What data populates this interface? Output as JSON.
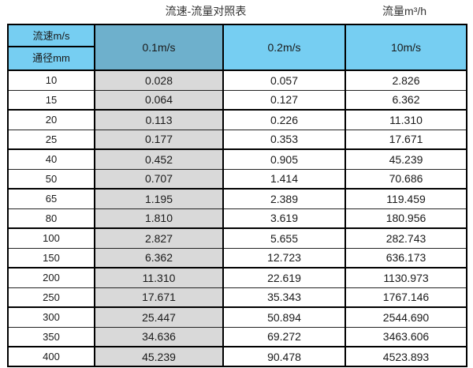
{
  "page": {
    "title": "流速-流量对照表",
    "unit_label": "流量m³/h"
  },
  "table_header": {
    "corner_top": "流速m/s",
    "corner_bottom": "通径mm",
    "velocity_columns": [
      "0.1m/s",
      "0.2m/s",
      "10m/s"
    ]
  },
  "chart_data": {
    "type": "table",
    "title": "流速-流量对照表",
    "right_label": "流量m³/h",
    "columns": [
      "通径mm",
      "0.1m/s",
      "0.2m/s",
      "10m/s"
    ],
    "rows": [
      [
        "10",
        "0.028",
        "0.057",
        "2.826"
      ],
      [
        "15",
        "0.064",
        "0.127",
        "6.362"
      ],
      [
        "20",
        "0.113",
        "0.226",
        "11.310"
      ],
      [
        "25",
        "0.177",
        "0.353",
        "17.671"
      ],
      [
        "40",
        "0.452",
        "0.905",
        "45.239"
      ],
      [
        "50",
        "0.707",
        "1.414",
        "70.686"
      ],
      [
        "65",
        "1.195",
        "2.389",
        "119.459"
      ],
      [
        "80",
        "1.810",
        "3.619",
        "180.956"
      ],
      [
        "100",
        "2.827",
        "5.655",
        "282.743"
      ],
      [
        "150",
        "6.362",
        "12.723",
        "636.173"
      ],
      [
        "200",
        "11.310",
        "22.619",
        "1130.973"
      ],
      [
        "250",
        "17.671",
        "35.343",
        "1767.146"
      ],
      [
        "300",
        "25.447",
        "50.894",
        "2544.690"
      ],
      [
        "350",
        "34.636",
        "69.272",
        "3463.606"
      ],
      [
        "400",
        "45.239",
        "90.478",
        "4523.893"
      ]
    ]
  },
  "colors": {
    "header_blue": "#76CEF2",
    "header_blue_dark": "#6EB0CC",
    "column_gray": "#D9D9D9",
    "border": "#000000"
  }
}
